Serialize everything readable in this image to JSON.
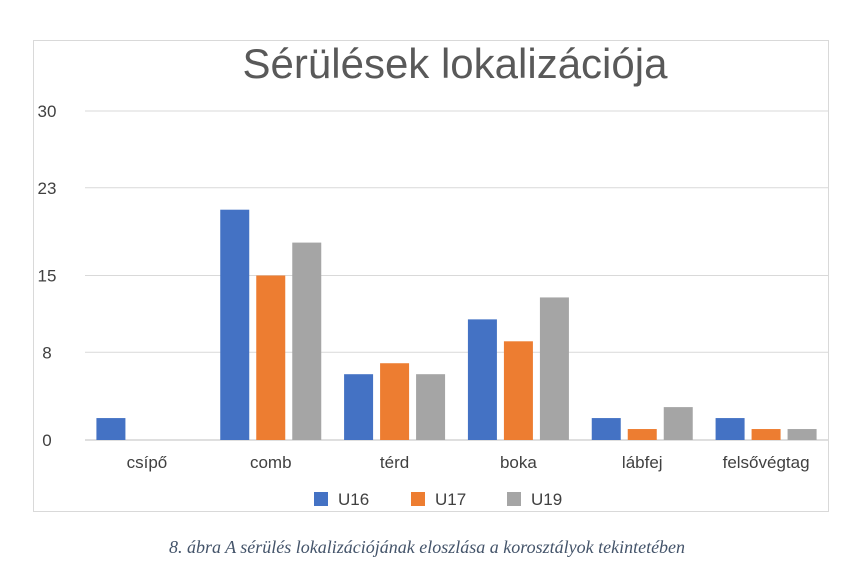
{
  "chart_data": {
    "type": "bar",
    "title": "Sérülések lokalizációja",
    "xlabel": "",
    "ylabel": "",
    "categories": [
      "csípő",
      "comb",
      "térd",
      "boka",
      "lábfej",
      "felsővégtag"
    ],
    "series": [
      {
        "name": "U16",
        "color": "#4472c4",
        "values": [
          2,
          21,
          6,
          11,
          2,
          2
        ]
      },
      {
        "name": "U17",
        "color": "#ed7d31",
        "values": [
          0,
          15,
          7,
          9,
          1,
          1
        ]
      },
      {
        "name": "U19",
        "color": "#a5a5a5",
        "values": [
          0,
          18,
          6,
          13,
          3,
          1
        ]
      }
    ],
    "yticks": [
      "0",
      "8",
      "15",
      "23",
      "30"
    ],
    "ylim": [
      0,
      30
    ],
    "grid": true,
    "legend": "bottom"
  },
  "caption": "8. ábra A sérülés lokalizációjának eloszlása a korosztályok tekintetében"
}
